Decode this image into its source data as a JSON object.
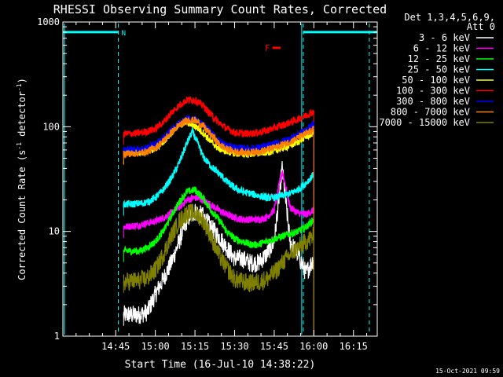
{
  "chart_data": {
    "type": "line",
    "title": "RHESSI Observing Summary Count Rates, Corrected",
    "xlabel": "Start Time (16-Jul-10 14:38:22)",
    "ylabel": "Corrected Count Rate (s-1 detector-1)",
    "ylabel_parts": {
      "main": "Corrected Count Rate (s",
      "sup1": "-1",
      "mid": " detector",
      "sup2": "-1",
      "end": ")"
    },
    "yscale": "log",
    "xlim_min": [
      -13,
      106
    ],
    "ylim": [
      1,
      1000
    ],
    "x_ticks": [
      {
        "t": 7,
        "label": "14:45"
      },
      {
        "t": 22,
        "label": "15:00"
      },
      {
        "t": 37,
        "label": "15:15"
      },
      {
        "t": 52,
        "label": "15:30"
      },
      {
        "t": 67,
        "label": "15:45"
      },
      {
        "t": 82,
        "label": "16:00"
      },
      {
        "t": 97,
        "label": "16:15"
      }
    ],
    "y_ticks": [
      1,
      10,
      100,
      1000
    ],
    "y_tick_labels": [
      "1",
      "10",
      "100",
      "1000"
    ],
    "legend_header": [
      "Det 1,3,4,5,6,9,",
      "Att 0"
    ],
    "legend_position": "top-right",
    "timestamp": "15-Oct-2021 09:59",
    "annotations": {
      "night_marker": "N",
      "flare_marker": "F"
    },
    "series": [
      {
        "name": "3 - 6 keV",
        "color": "#ffffff",
        "x": [
          10,
          16,
          19,
          22,
          25,
          28,
          31,
          34,
          37,
          40,
          43,
          46,
          49,
          52,
          55,
          58,
          61,
          64,
          67,
          70,
          73,
          76,
          79,
          82
        ],
        "y": [
          1.6,
          1.6,
          1.7,
          2.5,
          3.5,
          5,
          8,
          13,
          15.5,
          14,
          11,
          9,
          7,
          5.5,
          5.5,
          5,
          5,
          6,
          8,
          40,
          8,
          6,
          4,
          5.5
        ]
      },
      {
        "name": "6 - 12 keV",
        "color": "#ff00ff",
        "x": [
          10,
          16,
          19,
          22,
          25,
          28,
          31,
          34,
          37,
          40,
          43,
          46,
          49,
          52,
          55,
          58,
          61,
          64,
          67,
          70,
          73,
          76,
          79,
          82
        ],
        "y": [
          11,
          11.5,
          12,
          12.5,
          13.5,
          15,
          17,
          20,
          21,
          20,
          18,
          16,
          14.5,
          13.5,
          13,
          13,
          13,
          13.5,
          16,
          38,
          17,
          15,
          14.5,
          16
        ]
      },
      {
        "name": "12 - 25 keV",
        "color": "#00ff00",
        "x": [
          10,
          16,
          19,
          22,
          25,
          28,
          31,
          34,
          37,
          40,
          43,
          46,
          49,
          52,
          55,
          58,
          61,
          64,
          67,
          70,
          73,
          76,
          79,
          82
        ],
        "y": [
          6.5,
          6.5,
          7,
          8,
          10,
          14,
          19,
          24,
          25,
          21,
          16,
          13,
          10,
          8.5,
          8,
          7.5,
          7.5,
          8,
          8.5,
          9,
          9.5,
          10,
          11,
          13
        ]
      },
      {
        "name": "25 - 50 keV",
        "color": "#00ffff",
        "x": [
          10,
          16,
          19,
          22,
          25,
          28,
          31,
          34,
          36,
          38,
          40,
          43,
          46,
          49,
          52,
          55,
          58,
          61,
          64,
          67,
          70,
          73,
          76,
          79,
          82
        ],
        "y": [
          18,
          18.5,
          19,
          21,
          25,
          32,
          45,
          70,
          90,
          70,
          52,
          42,
          36,
          30,
          26,
          24,
          23,
          22,
          21,
          21,
          22,
          23,
          25,
          29,
          35
        ]
      },
      {
        "name": "50 - 100 keV",
        "color": "#ffff00",
        "x": [
          10,
          16,
          19,
          22,
          25,
          28,
          31,
          34,
          37,
          40,
          43,
          46,
          49,
          52,
          55,
          58,
          61,
          64,
          67,
          70,
          73,
          76,
          79,
          82
        ],
        "y": [
          56,
          57,
          58,
          62,
          72,
          88,
          105,
          110,
          102,
          88,
          72,
          62,
          58,
          56,
          55,
          55,
          56,
          57,
          59,
          62,
          66,
          72,
          80,
          88
        ]
      },
      {
        "name": "100 - 300 keV",
        "color": "#ff0000",
        "x": [
          10,
          16,
          19,
          22,
          25,
          28,
          31,
          34,
          37,
          40,
          43,
          46,
          49,
          52,
          55,
          58,
          61,
          64,
          67,
          70,
          73,
          76,
          79,
          82
        ],
        "y": [
          85,
          87,
          90,
          96,
          110,
          135,
          160,
          180,
          180,
          160,
          130,
          110,
          96,
          88,
          86,
          86,
          88,
          92,
          97,
          103,
          110,
          118,
          128,
          140
        ]
      },
      {
        "name": "300 - 800 keV",
        "color": "#0000ff",
        "x": [
          10,
          16,
          19,
          22,
          25,
          28,
          31,
          34,
          37,
          40,
          43,
          46,
          49,
          52,
          55,
          58,
          61,
          64,
          67,
          70,
          73,
          76,
          79,
          82
        ],
        "y": [
          60,
          61,
          63,
          68,
          78,
          93,
          108,
          118,
          118,
          106,
          88,
          73,
          66,
          63,
          62,
          62,
          63,
          65,
          68,
          72,
          77,
          84,
          93,
          105
        ]
      },
      {
        "name": "800 - 7000 keV",
        "color": "#ff8000",
        "x": [
          10,
          16,
          19,
          22,
          25,
          28,
          31,
          34,
          37,
          40,
          43,
          46,
          49,
          52,
          55,
          58,
          61,
          64,
          67,
          70,
          73,
          76,
          79,
          82
        ],
        "y": [
          55,
          56,
          58,
          63,
          73,
          88,
          103,
          115,
          115,
          102,
          84,
          69,
          61,
          58,
          57,
          57,
          58,
          60,
          63,
          67,
          72,
          78,
          85,
          95
        ]
      },
      {
        "name": "7000 - 15000 keV",
        "color": "#808000",
        "x": [
          10,
          16,
          19,
          22,
          25,
          28,
          31,
          34,
          37,
          40,
          43,
          46,
          49,
          52,
          55,
          58,
          61,
          64,
          67,
          70,
          73,
          76,
          79,
          82
        ],
        "y": [
          3.3,
          3.4,
          3.6,
          4.3,
          6,
          9,
          12.5,
          15,
          15,
          13,
          9,
          6,
          4.5,
          3.5,
          3.3,
          3.2,
          3.3,
          3.5,
          4,
          5,
          6,
          7,
          8,
          9
        ]
      }
    ],
    "orbit_bars": {
      "color": "#00ffff",
      "level": 800,
      "segments": [
        [
          -13,
          8
        ],
        [
          78,
          106
        ]
      ],
      "markers": [
        8,
        78,
        103
      ]
    },
    "flare_bar": {
      "color": "#ff0000",
      "level": 800,
      "range": [
        64,
        67
      ]
    }
  }
}
